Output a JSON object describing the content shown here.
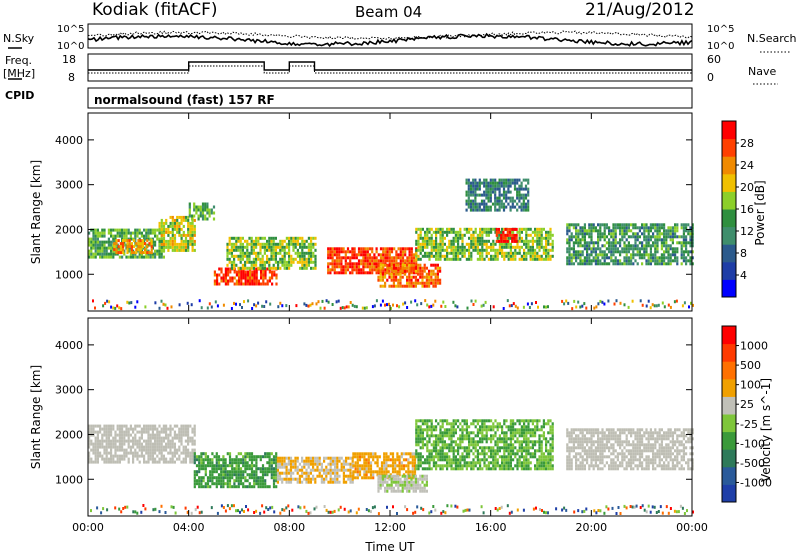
{
  "header": {
    "station": "Kodiak (fitACF)",
    "beam": "Beam 04",
    "date": "21/Aug/2012"
  },
  "strips": {
    "nsky_label": "N.Sky",
    "nsearch_label": "N.Search",
    "noise_ticks_left": [
      "10^5",
      "10^0"
    ],
    "noise_ticks_right": [
      "10^5",
      "10^0"
    ],
    "freq_label_line1": "Freq.",
    "freq_label_line2": "[MHz]",
    "freq_ticks": [
      "18",
      "8"
    ],
    "nave_label": "Nave",
    "nave_ticks": [
      "60",
      "0"
    ],
    "cpid_label": "CPID",
    "cpid_text": "normalsound (fast) 157 RF"
  },
  "colors": {
    "power_scale": [
      "#0000ff",
      "#1e3da6",
      "#2b5a8c",
      "#3f8e6c",
      "#2f8f3f",
      "#8ccf2a",
      "#f0c000",
      "#f08a00",
      "#ff4000",
      "#ff0000"
    ],
    "velocity_scale": [
      "#1f3fa8",
      "#2a5a9a",
      "#2e7a5a",
      "#3a9a3a",
      "#7ec63a",
      "#c0c0b8",
      "#f0a000",
      "#ff7000",
      "#ff3a00",
      "#ff0000"
    ],
    "ground_scatter": "#bebeb4"
  },
  "chart_data": [
    {
      "type": "heatmap",
      "panel": "power",
      "ylabel": "Slant Range [km]",
      "y_ticks": [
        "4000",
        "3000",
        "2000",
        "1000"
      ],
      "ylim": [
        180,
        4600
      ],
      "x_ticks": [
        "00:00",
        "04:00",
        "08:00",
        "12:00",
        "16:00",
        "20:00",
        "00:00"
      ],
      "xlim_hours": [
        0,
        24
      ],
      "colorbar_label": "Power [dB]",
      "colorbar_ticks": [
        "28",
        "24",
        "20",
        "16",
        "12",
        "8",
        "4"
      ],
      "colorbar_range": [
        0,
        30
      ],
      "regions": [
        {
          "t0": 0.0,
          "t1": 3.0,
          "r0": 1350,
          "r1": 2000,
          "value": 14
        },
        {
          "t0": 1.0,
          "t1": 2.5,
          "r0": 1450,
          "r1": 1750,
          "value": 22
        },
        {
          "t0": 2.8,
          "t1": 4.2,
          "r0": 1500,
          "r1": 2300,
          "value": 18
        },
        {
          "t0": 4.0,
          "t1": 5.0,
          "r0": 2200,
          "r1": 2600,
          "value": 14
        },
        {
          "t0": 5.0,
          "t1": 7.5,
          "r0": 750,
          "r1": 1100,
          "value": 27
        },
        {
          "t0": 5.5,
          "t1": 9.0,
          "r0": 1100,
          "r1": 1800,
          "value": 16
        },
        {
          "t0": 9.5,
          "t1": 13.0,
          "r0": 1000,
          "r1": 1600,
          "value": 26
        },
        {
          "t0": 11.5,
          "t1": 14.0,
          "r0": 700,
          "r1": 1200,
          "value": 24
        },
        {
          "t0": 13.0,
          "t1": 18.5,
          "r0": 1300,
          "r1": 2000,
          "value": 16
        },
        {
          "t0": 16.2,
          "t1": 17.0,
          "r0": 1700,
          "r1": 2000,
          "value": 28
        },
        {
          "t0": 19.0,
          "t1": 24.0,
          "r0": 1200,
          "r1": 2100,
          "value": 12
        },
        {
          "t0": 15.0,
          "t1": 17.5,
          "r0": 2400,
          "r1": 3100,
          "value": 10
        }
      ]
    },
    {
      "type": "heatmap",
      "panel": "velocity",
      "ylabel": "Slant Range [km]",
      "y_ticks": [
        "4000",
        "3000",
        "2000",
        "1000"
      ],
      "ylim": [
        180,
        4600
      ],
      "x_ticks": [
        "00:00",
        "04:00",
        "08:00",
        "12:00",
        "16:00",
        "20:00",
        "00:00"
      ],
      "xlim_hours": [
        0,
        24
      ],
      "xlabel": "Time UT",
      "colorbar_label": "Velocity [m s^-1]",
      "colorbar_ticks": [
        "1000",
        "500",
        "100",
        "25",
        "-25",
        "-100",
        "-500",
        "-1000"
      ],
      "colorbar_range": [
        -1000,
        1000
      ],
      "regions": [
        {
          "t0": 0.0,
          "t1": 4.2,
          "r0": 1350,
          "r1": 2200,
          "value": 0
        },
        {
          "t0": 4.2,
          "t1": 7.5,
          "r0": 800,
          "r1": 1600,
          "value": -300
        },
        {
          "t0": 7.5,
          "t1": 10.5,
          "r0": 900,
          "r1": 1500,
          "value": 200
        },
        {
          "t0": 10.5,
          "t1": 13.0,
          "r0": 1000,
          "r1": 1600,
          "value": 300
        },
        {
          "t0": 11.5,
          "t1": 13.5,
          "r0": 700,
          "r1": 1100,
          "value": 60
        },
        {
          "t0": 13.0,
          "t1": 18.5,
          "r0": 1200,
          "r1": 2300,
          "value": -200
        },
        {
          "t0": 19.0,
          "t1": 24.0,
          "r0": 1200,
          "r1": 2100,
          "value": 0
        }
      ]
    }
  ]
}
